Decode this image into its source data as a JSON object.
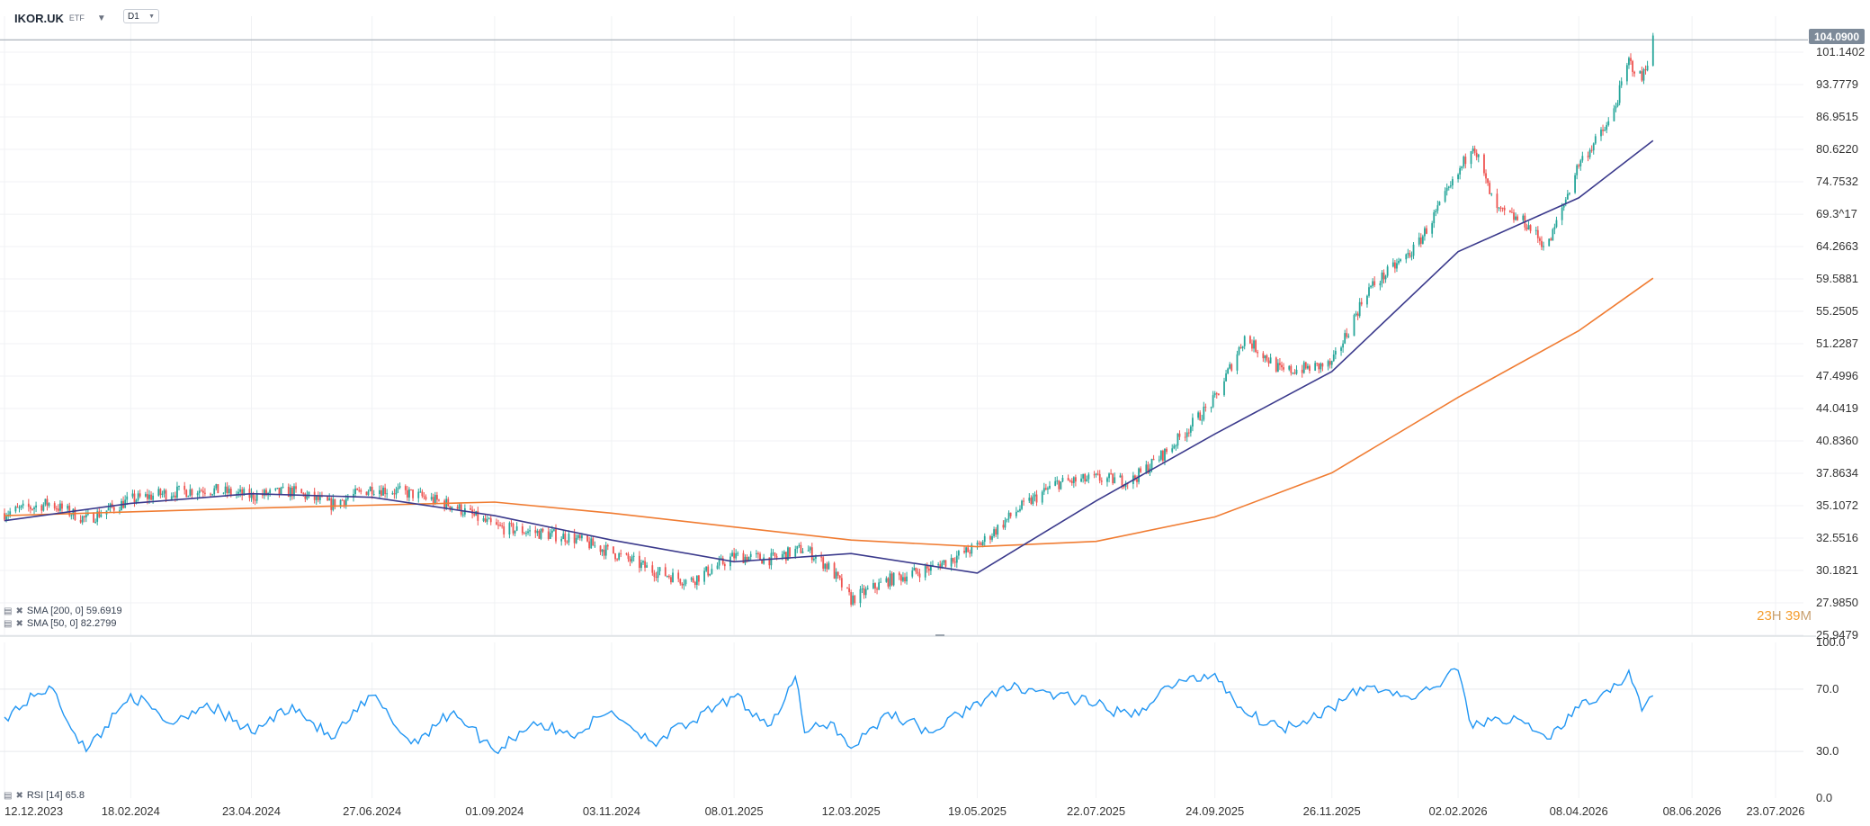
{
  "header": {
    "symbol": "IKOR.UK",
    "badge": "ETF",
    "timeframe": "D1"
  },
  "price_tag": "104.0900",
  "countdown": {
    "h": "23",
    "h_unit": "H",
    "m": "39",
    "m_unit": "M"
  },
  "legend": {
    "sma200": "SMA [200, 0] 59.6919",
    "sma50": "SMA [50, 0] 82.2799",
    "rsi": "RSI [14] 65.8"
  },
  "colors": {
    "up": "#26a69a",
    "down": "#ef5350",
    "sma50": "#3b3a8c",
    "sma200": "#f07c32",
    "rsi": "#2196f3",
    "price_line": "#9aa3ad",
    "countdown": "#f59e2f"
  },
  "chart_data": [
    {
      "type": "candlestick",
      "title": "IKOR.UK",
      "scale": "log",
      "ylim": [
        25.9479,
        110
      ],
      "y_ticks": [
        "104.0900",
        "101.1402",
        "93.7779",
        "86.9515",
        "80.6220",
        "74.7532",
        "69.3^17",
        "64.2663",
        "59.5881",
        "55.2505",
        "51.2287",
        "47.4996",
        "44.0419",
        "40.8360",
        "37.8634",
        "35.1072",
        "32.5516",
        "30.1821",
        "27.9850",
        "25.9479"
      ],
      "x_ticks": [
        "12.12.2023",
        "18.02.2024",
        "23.04.2024",
        "27.06.2024",
        "01.09.2024",
        "03.11.2024",
        "08.01.2025",
        "12.03.2025",
        "19.05.2025",
        "22.07.2025",
        "24.09.2025",
        "26.11.2025",
        "02.02.2026",
        "08.04.2026",
        "08.06.2026",
        "23.07.2026"
      ],
      "last_price": 104.09,
      "series_close": [
        [
          "2023-12-12",
          34.5
        ],
        [
          "2024-01-05",
          35.3
        ],
        [
          "2024-01-25",
          34.0
        ],
        [
          "2024-02-18",
          35.6
        ],
        [
          "2024-03-10",
          36.2
        ],
        [
          "2024-03-30",
          36.5
        ],
        [
          "2024-04-23",
          35.9
        ],
        [
          "2024-05-15",
          36.3
        ],
        [
          "2024-06-05",
          35.2
        ],
        [
          "2024-06-27",
          36.6
        ],
        [
          "2024-07-18",
          36.1
        ],
        [
          "2024-08-10",
          35.1
        ],
        [
          "2024-09-01",
          33.4
        ],
        [
          "2024-09-22",
          33.0
        ],
        [
          "2024-10-12",
          32.6
        ],
        [
          "2024-11-03",
          31.5
        ],
        [
          "2024-11-25",
          30.2
        ],
        [
          "2024-12-15",
          29.4
        ],
        [
          "2025-01-08",
          31.2
        ],
        [
          "2025-01-28",
          31.0
        ],
        [
          "2025-02-15",
          31.8
        ],
        [
          "2025-03-01",
          30.3
        ],
        [
          "2025-03-12",
          28.2
        ],
        [
          "2025-04-01",
          29.5
        ],
        [
          "2025-04-25",
          30.4
        ],
        [
          "2025-05-19",
          31.9
        ],
        [
          "2025-06-10",
          34.8
        ],
        [
          "2025-07-01",
          37.0
        ],
        [
          "2025-07-22",
          37.4
        ],
        [
          "2025-08-10",
          37.2
        ],
        [
          "2025-08-30",
          40.0
        ],
        [
          "2025-09-24",
          45.0
        ],
        [
          "2025-10-10",
          52.0
        ],
        [
          "2025-10-30",
          48.0
        ],
        [
          "2025-11-26",
          48.8
        ],
        [
          "2025-12-15",
          58.0
        ],
        [
          "2026-01-10",
          64.0
        ],
        [
          "2026-02-02",
          76.0
        ],
        [
          "2026-02-10",
          82.0
        ],
        [
          "2026-02-22",
          70.0
        ],
        [
          "2026-03-10",
          68.0
        ],
        [
          "2026-03-22",
          64.0
        ],
        [
          "2026-04-08",
          78.0
        ],
        [
          "2026-04-25",
          86.0
        ],
        [
          "2026-05-05",
          99.0
        ],
        [
          "2026-05-12",
          95.0
        ],
        [
          "2026-05-18",
          104.09
        ]
      ],
      "series": [
        {
          "name": "SMA [200, 0]",
          "last": 59.6919,
          "points": [
            [
              "2023-12-12",
              34.3
            ],
            [
              "2024-04-23",
              34.9
            ],
            [
              "2024-09-01",
              35.4
            ],
            [
              "2024-11-03",
              34.5
            ],
            [
              "2025-01-08",
              33.4
            ],
            [
              "2025-03-12",
              32.4
            ],
            [
              "2025-05-19",
              31.9
            ],
            [
              "2025-07-22",
              32.3
            ],
            [
              "2025-09-24",
              34.2
            ],
            [
              "2025-11-26",
              37.9
            ],
            [
              "2026-02-02",
              45.2
            ],
            [
              "2026-04-08",
              52.8
            ],
            [
              "2026-05-18",
              59.69
            ]
          ]
        },
        {
          "name": "SMA [50, 0]",
          "last": 82.2799,
          "points": [
            [
              "2023-12-12",
              33.9
            ],
            [
              "2024-02-18",
              35.3
            ],
            [
              "2024-04-23",
              36.1
            ],
            [
              "2024-06-27",
              35.8
            ],
            [
              "2024-09-01",
              34.3
            ],
            [
              "2024-11-03",
              32.4
            ],
            [
              "2025-01-08",
              30.8
            ],
            [
              "2025-03-12",
              31.4
            ],
            [
              "2025-05-19",
              30.0
            ],
            [
              "2025-07-22",
              35.5
            ],
            [
              "2025-09-24",
              41.5
            ],
            [
              "2025-11-26",
              48.0
            ],
            [
              "2026-02-02",
              63.5
            ],
            [
              "2026-04-08",
              72.0
            ],
            [
              "2026-05-18",
              82.28
            ]
          ]
        }
      ]
    },
    {
      "type": "line",
      "title": "RSI [14] 65.8",
      "ylim": [
        0.0,
        100.0
      ],
      "y_ticks": [
        "100.0",
        "70.0",
        "30.0",
        "0.0"
      ],
      "series": [
        {
          "name": "RSI [14]",
          "last": 65.8,
          "points": [
            [
              "2023-12-12",
              52
            ],
            [
              "2024-01-05",
              72
            ],
            [
              "2024-01-25",
              30
            ],
            [
              "2024-02-18",
              67
            ],
            [
              "2024-03-10",
              48
            ],
            [
              "2024-03-30",
              61
            ],
            [
              "2024-04-23",
              42
            ],
            [
              "2024-05-15",
              60
            ],
            [
              "2024-06-05",
              38
            ],
            [
              "2024-06-27",
              66
            ],
            [
              "2024-07-18",
              35
            ],
            [
              "2024-08-10",
              56
            ],
            [
              "2024-09-01",
              30
            ],
            [
              "2024-09-22",
              49
            ],
            [
              "2024-10-12",
              40
            ],
            [
              "2024-11-03",
              56
            ],
            [
              "2024-11-25",
              36
            ],
            [
              "2024-12-15",
              48
            ],
            [
              "2025-01-08",
              65
            ],
            [
              "2025-01-28",
              47
            ],
            [
              "2025-02-10",
              78
            ],
            [
              "2025-02-15",
              42
            ],
            [
              "2025-03-01",
              49
            ],
            [
              "2025-03-12",
              32
            ],
            [
              "2025-04-01",
              55
            ],
            [
              "2025-04-25",
              42
            ],
            [
              "2025-05-19",
              62
            ],
            [
              "2025-06-10",
              72
            ],
            [
              "2025-07-01",
              66
            ],
            [
              "2025-07-22",
              60
            ],
            [
              "2025-08-10",
              52
            ],
            [
              "2025-08-30",
              72
            ],
            [
              "2025-09-24",
              80
            ],
            [
              "2025-10-10",
              55
            ],
            [
              "2025-10-30",
              45
            ],
            [
              "2025-11-26",
              58
            ],
            [
              "2025-12-15",
              72
            ],
            [
              "2026-01-10",
              64
            ],
            [
              "2026-02-02",
              82
            ],
            [
              "2026-02-10",
              45
            ],
            [
              "2026-02-22",
              52
            ],
            [
              "2026-03-10",
              48
            ],
            [
              "2026-03-22",
              38
            ],
            [
              "2026-04-08",
              58
            ],
            [
              "2026-04-25",
              68
            ],
            [
              "2026-05-05",
              82
            ],
            [
              "2026-05-12",
              56
            ],
            [
              "2026-05-18",
              65.8
            ]
          ]
        }
      ]
    }
  ]
}
